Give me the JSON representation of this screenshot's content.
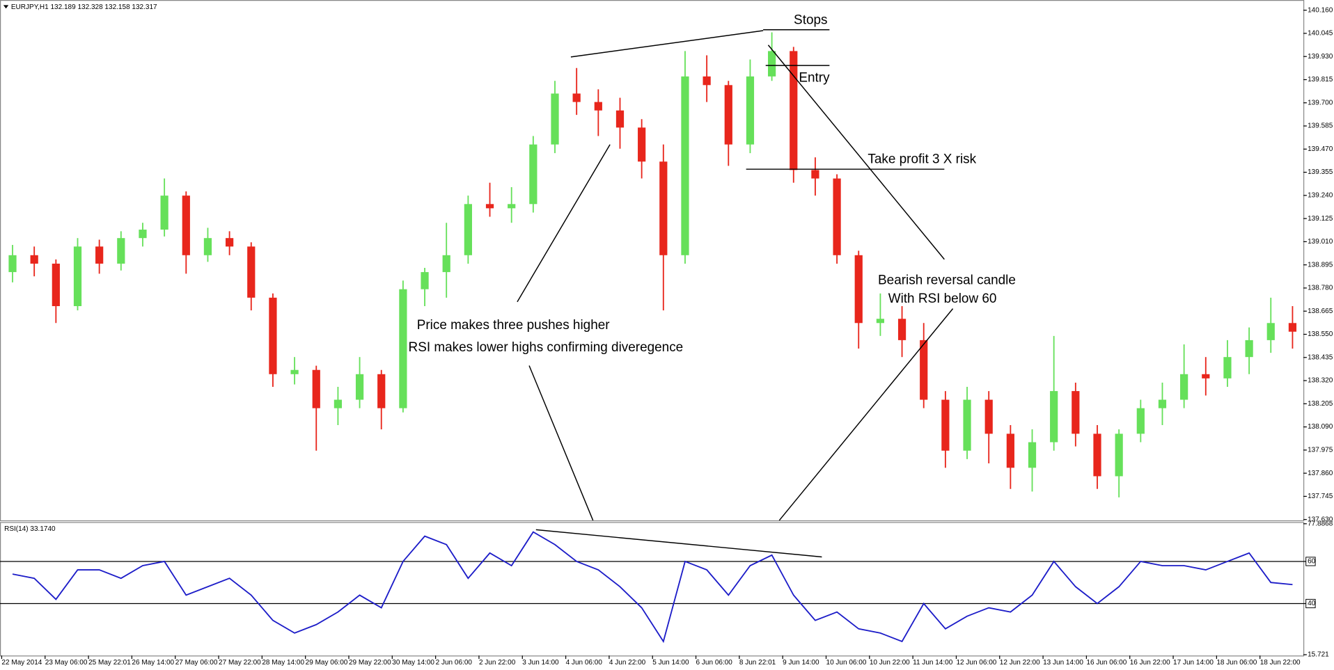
{
  "chart_data": [
    {
      "type": "candlestick",
      "title": "EURJPY,H1 132.189 132.328 132.158 132.317",
      "categories": [
        "22 May 2014",
        null,
        "23 May 06:00",
        null,
        "25 May 22:01",
        null,
        "26 May 14:00",
        null,
        "27 May 06:00",
        null,
        "27 May 22:00",
        null,
        "28 May 14:00",
        null,
        "29 May 06:00",
        null,
        "29 May 22:00",
        null,
        "30 May 14:00",
        null,
        "2 Jun 06:00",
        null,
        "2 Jun 22:00",
        null,
        "3 Jun 14:00",
        null,
        "4 Jun 06:00",
        null,
        "4 Jun 22:00",
        null,
        "5 Jun 14:00",
        null,
        "6 Jun 06:00",
        null,
        "8 Jun 22:01",
        null,
        "9 Jun 14:00",
        null,
        "10 Jun 06:00",
        null,
        "10 Jun 22:00",
        null,
        "11 Jun 14:00",
        null,
        "12 Jun 06:00",
        null,
        "12 Jun 22:00",
        null,
        "13 Jun 14:00",
        null,
        "16 Jun 06:00",
        null,
        "16 Jun 22:00",
        null,
        "17 Jun 14:00",
        null,
        "18 Jun 06:00",
        null,
        "18 Jun 22:00",
        null
      ],
      "open": [
        138.859,
        138.943,
        138.901,
        138.69,
        138.986,
        138.901,
        139.028,
        139.07,
        139.239,
        138.943,
        139.028,
        138.986,
        138.732,
        138.352,
        138.373,
        138.183,
        138.225,
        138.352,
        138.183,
        138.774,
        138.859,
        138.943,
        139.197,
        139.176,
        139.197,
        139.493,
        139.746,
        139.704,
        139.662,
        139.577,
        139.408,
        138.943,
        139.831,
        139.788,
        139.493,
        139.831,
        139.957,
        139.366,
        139.324,
        138.943,
        138.606,
        138.627,
        138.521,
        138.225,
        137.972,
        138.225,
        138.056,
        137.887,
        138.014,
        138.268,
        138.056,
        137.845,
        138.056,
        138.183,
        138.225,
        138.352,
        138.331,
        138.437,
        138.521,
        138.606
      ],
      "high": [
        138.994,
        138.986,
        138.922,
        139.028,
        139.02,
        139.062,
        139.104,
        139.324,
        139.26,
        139.079,
        139.062,
        139.007,
        138.753,
        138.437,
        138.394,
        138.289,
        138.437,
        138.373,
        138.817,
        138.88,
        139.104,
        139.239,
        139.303,
        139.281,
        139.535,
        139.809,
        139.873,
        139.767,
        139.725,
        139.619,
        139.493,
        139.957,
        139.936,
        139.809,
        139.915,
        140.05,
        139.978,
        139.429,
        139.345,
        138.965,
        138.753,
        138.69,
        138.606,
        138.268,
        138.289,
        138.268,
        138.099,
        138.078,
        138.542,
        138.31,
        138.099,
        138.078,
        138.225,
        138.31,
        138.5,
        138.437,
        138.521,
        138.584,
        138.732,
        138.69
      ],
      "low": [
        138.808,
        138.838,
        138.606,
        138.669,
        138.851,
        138.867,
        138.986,
        139.036,
        138.851,
        138.91,
        138.943,
        138.669,
        138.289,
        138.301,
        137.972,
        138.099,
        138.183,
        138.078,
        138.162,
        138.69,
        138.732,
        138.901,
        139.134,
        139.104,
        139.155,
        139.45,
        139.64,
        139.535,
        139.472,
        139.324,
        138.669,
        138.901,
        139.704,
        139.387,
        139.45,
        139.809,
        139.303,
        139.239,
        138.901,
        138.479,
        138.542,
        138.437,
        138.183,
        137.887,
        137.93,
        137.909,
        137.782,
        137.769,
        137.972,
        137.993,
        137.782,
        137.74,
        138.014,
        138.099,
        138.183,
        138.246,
        138.289,
        138.352,
        138.458,
        138.479
      ],
      "close": [
        138.943,
        138.901,
        138.69,
        138.986,
        138.901,
        139.028,
        139.07,
        139.239,
        138.943,
        139.028,
        138.986,
        138.732,
        138.352,
        138.373,
        138.183,
        138.225,
        138.352,
        138.183,
        138.774,
        138.859,
        138.943,
        139.197,
        139.176,
        139.197,
        139.493,
        139.746,
        139.704,
        139.662,
        139.577,
        139.408,
        138.943,
        139.831,
        139.788,
        139.493,
        139.831,
        139.957,
        139.366,
        139.324,
        138.943,
        138.606,
        138.627,
        138.521,
        138.225,
        137.972,
        138.225,
        138.056,
        137.887,
        138.014,
        138.268,
        138.056,
        137.845,
        138.056,
        138.183,
        138.225,
        138.352,
        138.331,
        138.437,
        138.521,
        138.606,
        138.563
      ],
      "up_color": "#66e05a",
      "down_color": "#e8261c",
      "ylim": [
        137.63,
        140.16
      ],
      "yticks": [
        {
          "value": 140.16,
          "label": "140.160"
        },
        140.045,
        {
          "value": 139.93,
          "label": "139.930"
        },
        139.815,
        {
          "value": 139.7,
          "label": "139.700"
        },
        139.585,
        {
          "value": 139.47,
          "label": "139.470"
        },
        139.355,
        {
          "value": 139.24,
          "label": "139.240"
        },
        139.125,
        {
          "value": 139.01,
          "label": "139.010"
        },
        138.895,
        {
          "value": 138.78,
          "label": "138.780"
        },
        138.665,
        {
          "value": 138.55,
          "label": "138.550"
        },
        138.435,
        {
          "value": 138.32,
          "label": "138.320"
        },
        138.205,
        {
          "value": 138.09,
          "label": "138.090"
        },
        137.975,
        {
          "value": 137.86,
          "label": "137.860"
        },
        137.745,
        {
          "value": 137.63,
          "label": "137.630"
        }
      ],
      "grid": false
    },
    {
      "type": "line",
      "title": "RSI(14) 33.1740",
      "color": "#1c1cc8",
      "values": [
        54,
        52,
        42,
        56,
        56,
        52,
        58,
        60,
        44,
        48,
        52,
        44,
        32,
        26,
        30,
        36,
        44,
        38,
        60,
        72,
        68,
        52,
        64,
        58,
        74,
        68,
        60,
        56,
        48,
        38,
        22,
        60,
        56,
        44,
        58,
        63,
        44,
        32,
        36,
        28,
        26,
        22,
        40,
        28,
        34,
        38,
        36,
        44,
        60,
        48,
        40,
        48,
        60,
        58,
        58,
        56,
        60,
        64,
        50,
        49
      ],
      "levels": [
        60,
        40
      ],
      "ylim": [
        15.721,
        77.8868
      ],
      "yticks": [
        77.8868,
        60,
        40,
        15.721
      ]
    }
  ],
  "annotations": {
    "stops": "Stops",
    "entry": "Entry",
    "take_profit": "Take profit 3 X risk",
    "reversal_1": "Bearish reversal candle",
    "reversal_2": "With RSI below 60",
    "pushes": "Price makes three pushes higher",
    "divergence": "RSI makes lower highs confirming diveregence"
  }
}
